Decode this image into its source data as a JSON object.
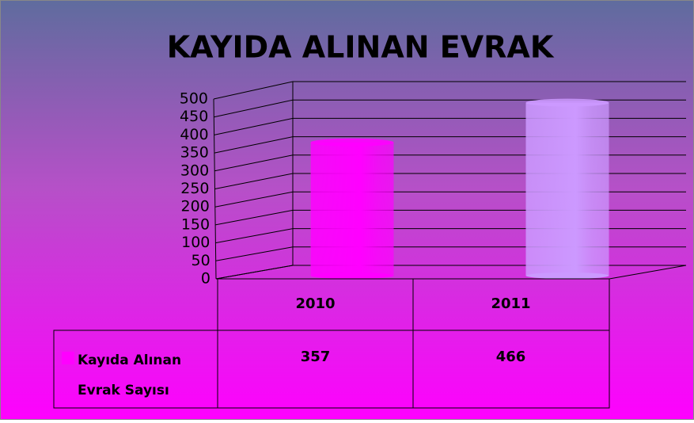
{
  "chart_data": {
    "type": "bar3d",
    "title": "KAYIDA ALINAN EVRAK",
    "categories": [
      "2010",
      "2011"
    ],
    "series": [
      {
        "name": "Kayıda Alınan Evrak Sayısı",
        "color": "#ff00ff",
        "colors": [
          "#ff00ff",
          "#cc99ff"
        ],
        "values": [
          357,
          466
        ]
      }
    ],
    "ylim": [
      0,
      500
    ],
    "yticks": [
      0,
      50,
      100,
      150,
      200,
      250,
      300,
      350,
      400,
      450,
      500
    ],
    "grid": true,
    "data_table": true
  }
}
